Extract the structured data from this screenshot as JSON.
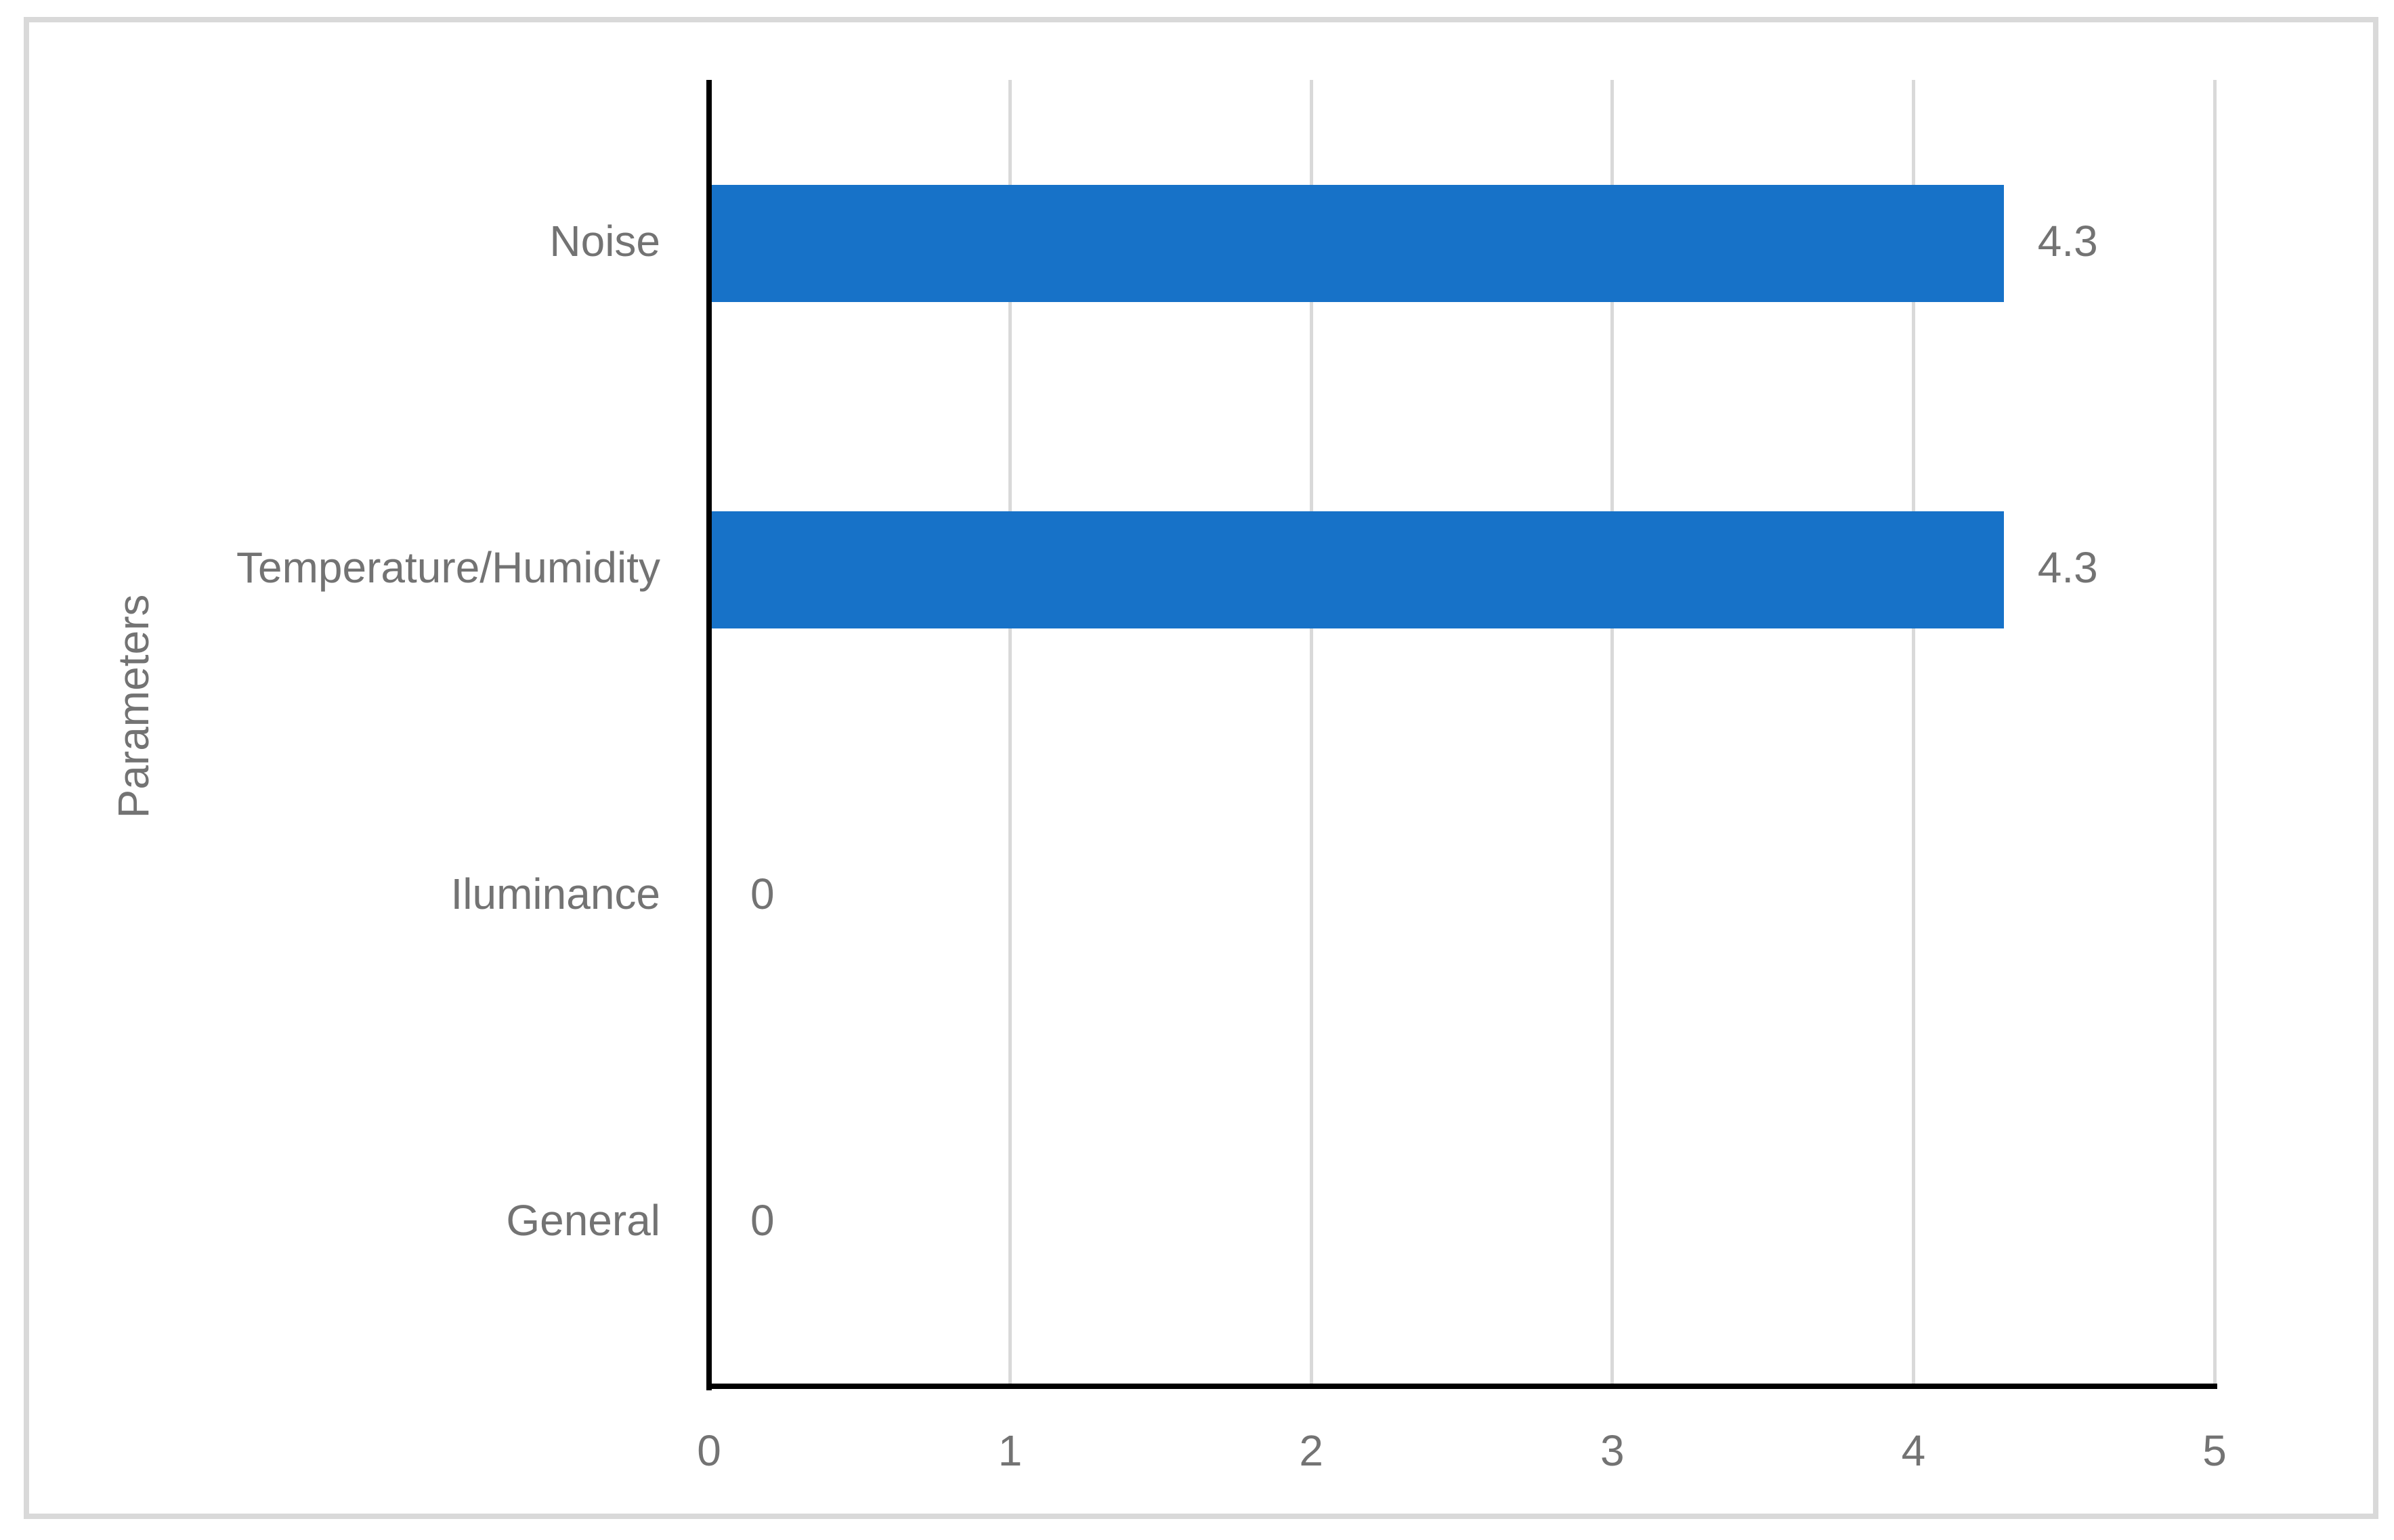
{
  "chart_data": {
    "type": "bar",
    "orientation": "horizontal",
    "title": "",
    "categories": [
      "Noise",
      "Temperature/Humidity",
      "Iluminance",
      "General"
    ],
    "values": [
      4.3,
      4.3,
      0,
      0
    ],
    "data_labels": [
      "4.3",
      "4.3",
      "0",
      "0"
    ],
    "xlabel": "",
    "ylabel": "Parameters",
    "xlim": [
      0,
      5
    ],
    "xticks": [
      0,
      1,
      2,
      3,
      4,
      5
    ],
    "grid": "vertical-gridlines-on",
    "legend": "none",
    "bar_color": "#1772C8",
    "label_color": "#737373",
    "gridline_color": "#D9D9D9",
    "axis_color": "#000000",
    "frame_border_color": "#D9D9D9"
  }
}
